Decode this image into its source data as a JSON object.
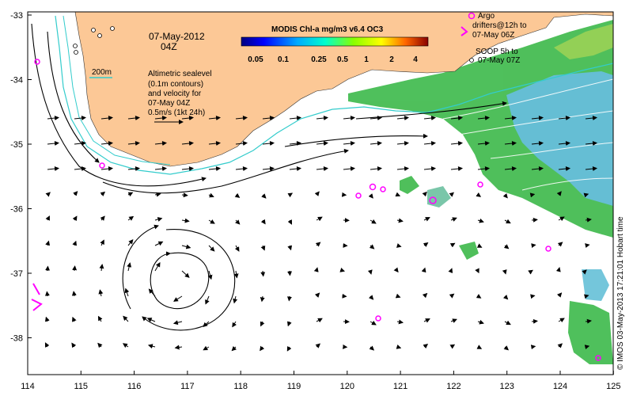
{
  "map": {
    "date_label": "07-May-2012",
    "time_label": "04Z",
    "colorbar": {
      "title": "MODIS Chl-a mg/m3 v6.4 OC3",
      "tick_labels": [
        "0.05",
        "0.1",
        "0.25",
        "0.5",
        "1",
        "2",
        "4"
      ]
    },
    "isobath_label": "200m",
    "altimetry_lines": [
      "Altimetric sealevel",
      "(0.1m contours)",
      "and velocity for",
      "07-May 04Z",
      "0.5m/s (1kt 24h)"
    ],
    "legend": {
      "argo_lines": [
        "Argo",
        "drifters@12h to",
        "07-May 06Z"
      ],
      "soop_lines": [
        "SOOP 5h to",
        "07-May 07Z"
      ]
    },
    "credit": "© IMOS 03-May-2013 17:21:01 Hobart time",
    "lon_labels": [
      "114",
      "115",
      "116",
      "117",
      "118",
      "119",
      "120",
      "121",
      "122",
      "123",
      "124",
      "125"
    ],
    "lat_labels": [
      "-33",
      "-34",
      "-35",
      "-36",
      "-37",
      "-38"
    ],
    "colors": {
      "land": "#fcc896",
      "isobath": "#33cccc",
      "argo": "#ff00ff",
      "chl_green": "#33bb44",
      "chl_blue": "#33aacc"
    }
  }
}
